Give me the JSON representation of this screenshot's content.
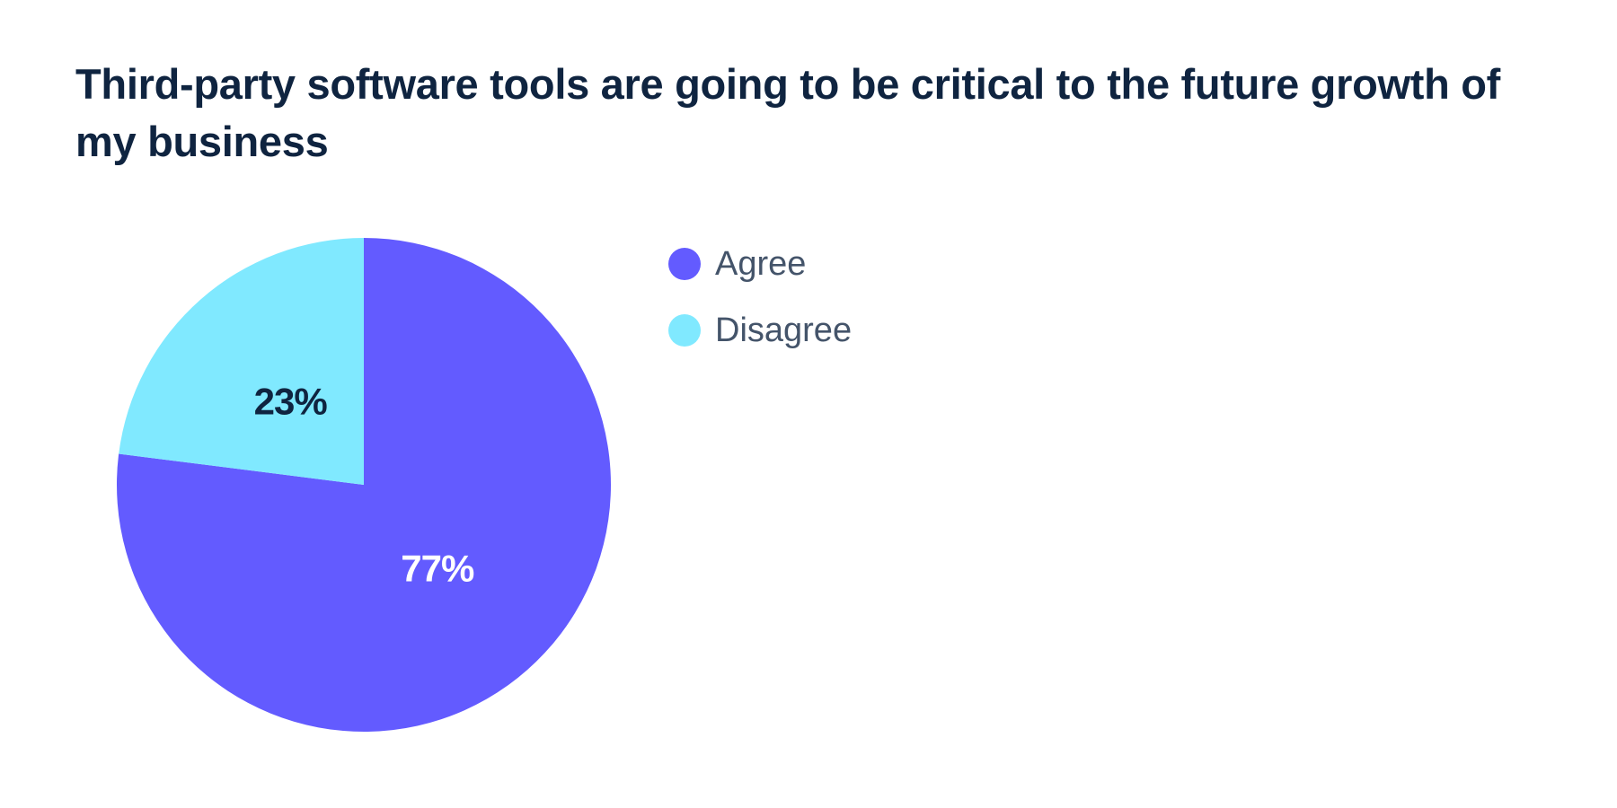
{
  "chart_data": {
    "type": "pie",
    "title": "Third-party software tools are going to be critical to the future growth of my business",
    "unit": "%",
    "slices": [
      {
        "label": "Agree",
        "value": 77,
        "display": "77%",
        "color": "#635bff",
        "label_color": "#ffffff"
      },
      {
        "label": "Disagree",
        "value": 23,
        "display": "23%",
        "color": "#80e9ff",
        "label_color": "#0f2440"
      }
    ],
    "start_angle_deg": 0,
    "direction": "clockwise",
    "legend_position": "right"
  }
}
